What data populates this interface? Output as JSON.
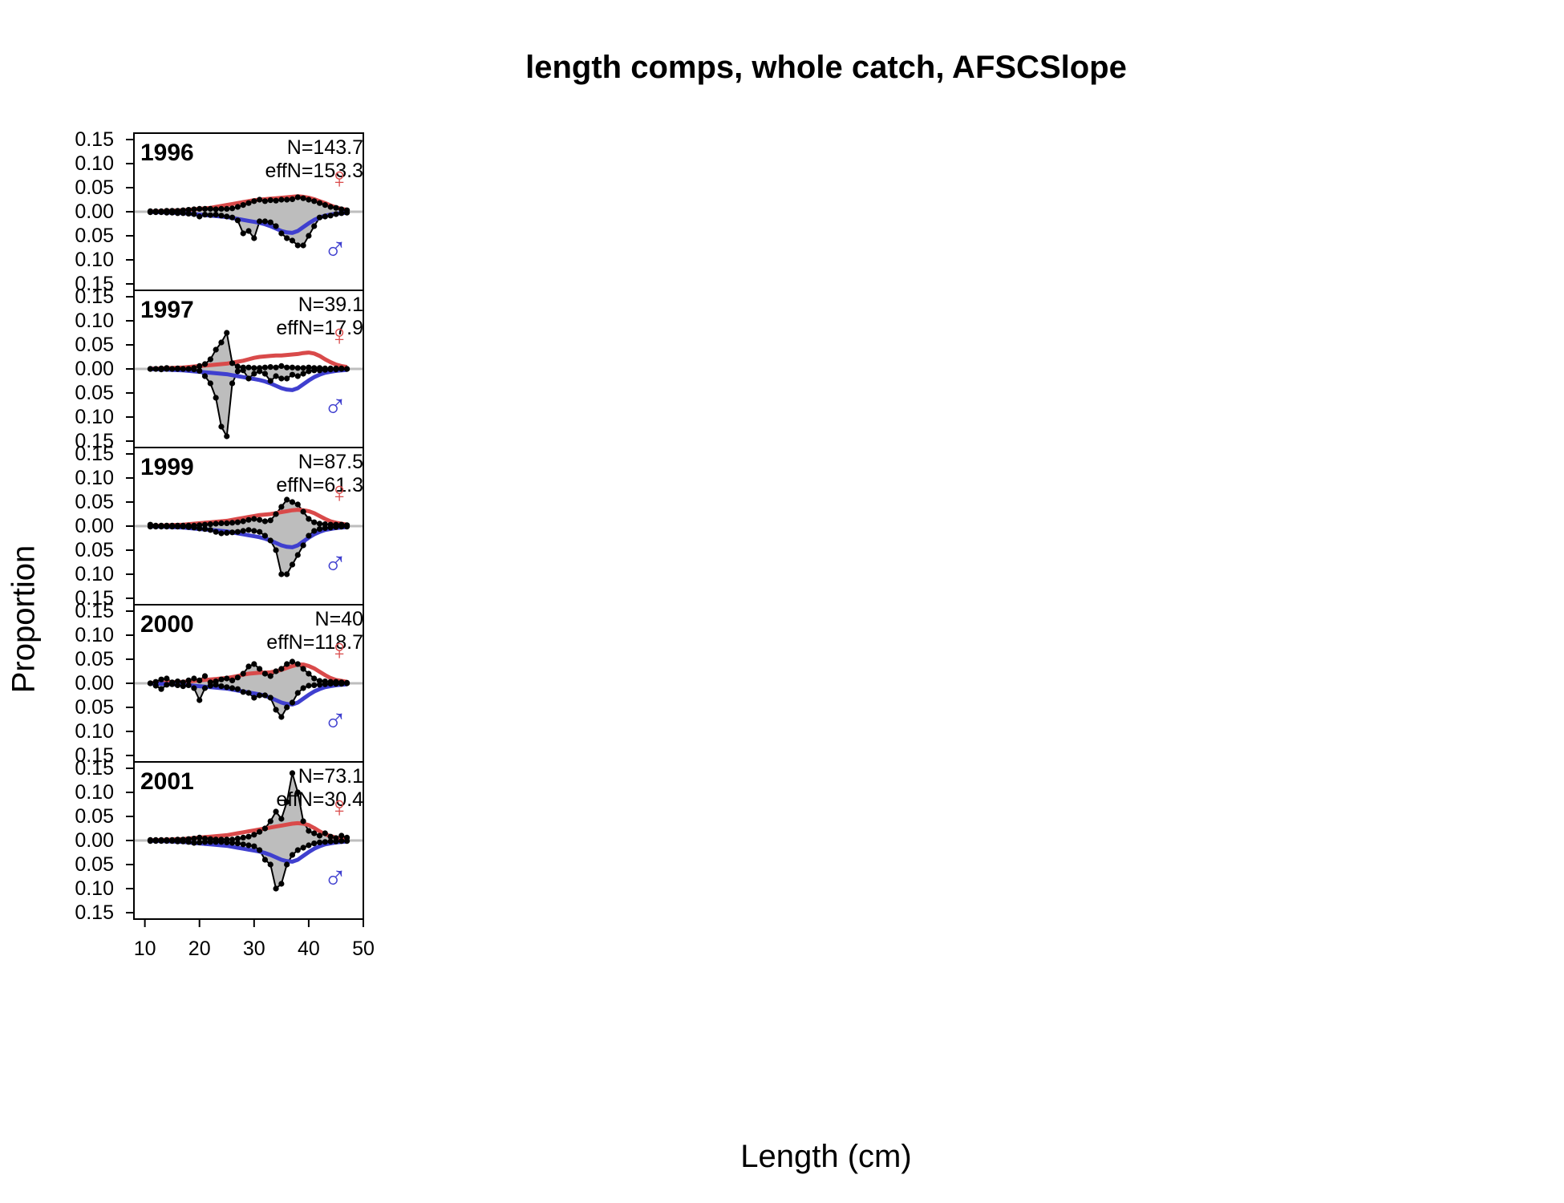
{
  "chart_data": {
    "type": "area",
    "title": "length comps, whole catch, AFSCSlope",
    "xlabel": "Length (cm)",
    "ylabel": "Proportion",
    "xlim": [
      8,
      50
    ],
    "ylim": [
      -0.15,
      0.15
    ],
    "x_ticks": [
      10,
      20,
      30,
      40,
      50
    ],
    "y_tick_labels": [
      "0.15",
      "0.10",
      "0.05",
      "0.00",
      "0.05",
      "0.10",
      "0.15"
    ],
    "sex_symbols": {
      "female": "♀",
      "male": "♂"
    },
    "colors": {
      "female": "#d94a4a",
      "male": "#3f3fcf",
      "observed": "#000000",
      "fill": "#bdbdbd",
      "zero_line": "#bebebe"
    },
    "panels": [
      {
        "year": "1996",
        "n_label": "N=143.7",
        "effn_label": "effN=153.3",
        "x": [
          11,
          12,
          13,
          14,
          15,
          16,
          17,
          18,
          19,
          20,
          21,
          22,
          23,
          24,
          25,
          26,
          27,
          28,
          29,
          30,
          31,
          32,
          33,
          34,
          35,
          36,
          37,
          38,
          39,
          40,
          41,
          42,
          43,
          44,
          45,
          46,
          47
        ],
        "female_obs": [
          0.001,
          0.001,
          0.001,
          0.002,
          0.002,
          0.002,
          0.003,
          0.004,
          0.005,
          0.006,
          0.006,
          0.006,
          0.005,
          0.006,
          0.006,
          0.007,
          0.01,
          0.014,
          0.018,
          0.022,
          0.025,
          0.022,
          0.024,
          0.023,
          0.025,
          0.025,
          0.026,
          0.03,
          0.028,
          0.025,
          0.022,
          0.018,
          0.014,
          0.01,
          0.008,
          0.005,
          0.003
        ],
        "male_obs": [
          0.001,
          0.001,
          0.001,
          0.002,
          0.002,
          0.003,
          0.003,
          0.004,
          0.005,
          0.01,
          0.006,
          0.007,
          0.006,
          0.008,
          0.01,
          0.012,
          0.018,
          0.045,
          0.04,
          0.055,
          0.02,
          0.02,
          0.022,
          0.03,
          0.045,
          0.055,
          0.06,
          0.07,
          0.07,
          0.05,
          0.03,
          0.012,
          0.01,
          0.008,
          0.005,
          0.003,
          0.002
        ],
        "female_fit": [
          0.0005,
          0.0008,
          0.001,
          0.0015,
          0.002,
          0.0025,
          0.003,
          0.004,
          0.005,
          0.006,
          0.007,
          0.008,
          0.01,
          0.012,
          0.014,
          0.016,
          0.018,
          0.02,
          0.022,
          0.024,
          0.025,
          0.026,
          0.027,
          0.028,
          0.029,
          0.03,
          0.031,
          0.032,
          0.031,
          0.029,
          0.026,
          0.022,
          0.018,
          0.013,
          0.009,
          0.006,
          0.004
        ],
        "male_fit": [
          0.0005,
          0.0008,
          0.001,
          0.0015,
          0.002,
          0.0025,
          0.003,
          0.004,
          0.005,
          0.006,
          0.007,
          0.008,
          0.009,
          0.01,
          0.011,
          0.013,
          0.015,
          0.017,
          0.019,
          0.021,
          0.023,
          0.026,
          0.03,
          0.035,
          0.04,
          0.043,
          0.044,
          0.04,
          0.032,
          0.024,
          0.017,
          0.012,
          0.008,
          0.006,
          0.004,
          0.003,
          0.002
        ]
      },
      {
        "year": "1997",
        "n_label": "N=39.1",
        "effn_label": "effN=17.9",
        "x": [
          11,
          12,
          13,
          14,
          15,
          16,
          17,
          18,
          19,
          20,
          21,
          22,
          23,
          24,
          25,
          26,
          27,
          28,
          29,
          30,
          31,
          32,
          33,
          34,
          35,
          36,
          37,
          38,
          39,
          40,
          41,
          42,
          43,
          44,
          45,
          46,
          47
        ],
        "female_obs": [
          0.0,
          0.0,
          0.001,
          0.002,
          0.0,
          0.001,
          0.0,
          0.0,
          0.002,
          0.006,
          0.01,
          0.02,
          0.04,
          0.055,
          0.075,
          0.012,
          0.005,
          0.003,
          0.003,
          0.002,
          0.002,
          0.003,
          0.004,
          0.003,
          0.006,
          0.003,
          0.003,
          0.002,
          0.002,
          0.003,
          0.002,
          0.002,
          0.001,
          0.001,
          0.001,
          0.001,
          0.0
        ],
        "male_obs": [
          0.0,
          0.0,
          0.001,
          0.0,
          0.0,
          0.0,
          0.0,
          0.0,
          0.001,
          0.004,
          0.015,
          0.03,
          0.06,
          0.12,
          0.14,
          0.03,
          0.005,
          0.003,
          0.02,
          0.01,
          0.005,
          0.01,
          0.025,
          0.015,
          0.02,
          0.02,
          0.012,
          0.015,
          0.01,
          0.005,
          0.003,
          0.003,
          0.002,
          0.001,
          0.001,
          0.0,
          0.0
        ],
        "female_fit": [
          0.0005,
          0.0008,
          0.001,
          0.0015,
          0.002,
          0.0025,
          0.003,
          0.004,
          0.005,
          0.006,
          0.007,
          0.008,
          0.009,
          0.01,
          0.011,
          0.013,
          0.015,
          0.017,
          0.02,
          0.023,
          0.025,
          0.026,
          0.027,
          0.028,
          0.028,
          0.029,
          0.03,
          0.031,
          0.033,
          0.034,
          0.032,
          0.027,
          0.02,
          0.014,
          0.009,
          0.006,
          0.004
        ],
        "male_fit": [
          0.0005,
          0.0008,
          0.001,
          0.0015,
          0.002,
          0.0025,
          0.003,
          0.004,
          0.005,
          0.006,
          0.007,
          0.008,
          0.009,
          0.01,
          0.011,
          0.013,
          0.015,
          0.017,
          0.019,
          0.021,
          0.023,
          0.026,
          0.03,
          0.035,
          0.04,
          0.043,
          0.044,
          0.04,
          0.032,
          0.024,
          0.017,
          0.012,
          0.008,
          0.006,
          0.004,
          0.003,
          0.002
        ]
      },
      {
        "year": "1999",
        "n_label": "N=87.5",
        "effn_label": "effN=61.3",
        "x": [
          11,
          12,
          13,
          14,
          15,
          16,
          17,
          18,
          19,
          20,
          21,
          22,
          23,
          24,
          25,
          26,
          27,
          28,
          29,
          30,
          31,
          32,
          33,
          34,
          35,
          36,
          37,
          38,
          39,
          40,
          41,
          42,
          43,
          44,
          45,
          46,
          47
        ],
        "female_obs": [
          0.003,
          0.001,
          0.001,
          0.001,
          0.001,
          0.001,
          0.001,
          0.001,
          0.001,
          0.002,
          0.003,
          0.004,
          0.005,
          0.006,
          0.006,
          0.007,
          0.008,
          0.01,
          0.013,
          0.015,
          0.013,
          0.01,
          0.012,
          0.025,
          0.04,
          0.055,
          0.05,
          0.045,
          0.03,
          0.015,
          0.008,
          0.005,
          0.004,
          0.003,
          0.003,
          0.003,
          0.002
        ],
        "male_obs": [
          0.001,
          0.001,
          0.001,
          0.001,
          0.001,
          0.001,
          0.001,
          0.002,
          0.003,
          0.005,
          0.006,
          0.008,
          0.012,
          0.015,
          0.014,
          0.013,
          0.012,
          0.01,
          0.008,
          0.01,
          0.012,
          0.02,
          0.03,
          0.05,
          0.1,
          0.1,
          0.08,
          0.06,
          0.04,
          0.02,
          0.01,
          0.006,
          0.004,
          0.003,
          0.002,
          0.001,
          0.001
        ],
        "female_fit": [
          0.0005,
          0.0008,
          0.001,
          0.0015,
          0.002,
          0.0025,
          0.003,
          0.004,
          0.005,
          0.006,
          0.007,
          0.008,
          0.009,
          0.01,
          0.011,
          0.013,
          0.015,
          0.017,
          0.019,
          0.021,
          0.023,
          0.024,
          0.025,
          0.027,
          0.029,
          0.031,
          0.033,
          0.034,
          0.033,
          0.031,
          0.027,
          0.021,
          0.015,
          0.01,
          0.007,
          0.005,
          0.003
        ],
        "male_fit": [
          0.0005,
          0.0008,
          0.001,
          0.0015,
          0.002,
          0.0025,
          0.003,
          0.004,
          0.005,
          0.006,
          0.007,
          0.008,
          0.009,
          0.01,
          0.011,
          0.013,
          0.015,
          0.017,
          0.019,
          0.021,
          0.023,
          0.026,
          0.03,
          0.035,
          0.04,
          0.043,
          0.044,
          0.04,
          0.032,
          0.024,
          0.017,
          0.012,
          0.008,
          0.006,
          0.004,
          0.003,
          0.002
        ]
      },
      {
        "year": "2000",
        "n_label": "N=40",
        "effn_label": "effN=118.7",
        "x": [
          11,
          12,
          13,
          14,
          15,
          16,
          17,
          18,
          19,
          20,
          21,
          22,
          23,
          24,
          25,
          26,
          27,
          28,
          29,
          30,
          31,
          32,
          33,
          34,
          35,
          36,
          37,
          38,
          39,
          40,
          41,
          42,
          43,
          44,
          45,
          46,
          47
        ],
        "female_obs": [
          0.0,
          0.003,
          0.008,
          0.01,
          0.002,
          0.004,
          0.002,
          0.006,
          0.01,
          0.006,
          0.015,
          0.002,
          0.004,
          0.008,
          0.01,
          0.006,
          0.012,
          0.02,
          0.035,
          0.04,
          0.03,
          0.02,
          0.015,
          0.025,
          0.03,
          0.04,
          0.045,
          0.04,
          0.03,
          0.02,
          0.01,
          0.005,
          0.004,
          0.003,
          0.003,
          0.002,
          0.001
        ],
        "male_obs": [
          0.0,
          0.005,
          0.012,
          0.003,
          0.002,
          0.004,
          0.006,
          0.004,
          0.01,
          0.035,
          0.01,
          0.005,
          0.003,
          0.006,
          0.008,
          0.01,
          0.012,
          0.018,
          0.02,
          0.03,
          0.025,
          0.025,
          0.03,
          0.055,
          0.07,
          0.05,
          0.04,
          0.02,
          0.01,
          0.005,
          0.004,
          0.003,
          0.002,
          0.001,
          0.001,
          0.001,
          0.0
        ],
        "female_fit": [
          0.0005,
          0.0008,
          0.001,
          0.0015,
          0.002,
          0.0025,
          0.003,
          0.004,
          0.005,
          0.006,
          0.007,
          0.008,
          0.009,
          0.01,
          0.011,
          0.013,
          0.015,
          0.018,
          0.02,
          0.021,
          0.022,
          0.022,
          0.023,
          0.025,
          0.028,
          0.032,
          0.036,
          0.039,
          0.039,
          0.036,
          0.031,
          0.024,
          0.017,
          0.011,
          0.007,
          0.005,
          0.003
        ],
        "male_fit": [
          0.0005,
          0.0008,
          0.001,
          0.0015,
          0.002,
          0.0025,
          0.003,
          0.004,
          0.005,
          0.006,
          0.007,
          0.008,
          0.009,
          0.01,
          0.011,
          0.013,
          0.015,
          0.017,
          0.019,
          0.021,
          0.023,
          0.026,
          0.03,
          0.035,
          0.04,
          0.043,
          0.044,
          0.04,
          0.032,
          0.024,
          0.017,
          0.012,
          0.008,
          0.006,
          0.004,
          0.003,
          0.002
        ]
      },
      {
        "year": "2001",
        "n_label": "N=73.1",
        "effn_label": "effN=30.4",
        "x": [
          11,
          12,
          13,
          14,
          15,
          16,
          17,
          18,
          19,
          20,
          21,
          22,
          23,
          24,
          25,
          26,
          27,
          28,
          29,
          30,
          31,
          32,
          33,
          34,
          35,
          36,
          37,
          38,
          39,
          40,
          41,
          42,
          43,
          44,
          45,
          46,
          47
        ],
        "female_obs": [
          0.001,
          0.001,
          0.001,
          0.001,
          0.001,
          0.002,
          0.002,
          0.003,
          0.004,
          0.006,
          0.004,
          0.003,
          0.002,
          0.002,
          0.002,
          0.002,
          0.004,
          0.006,
          0.008,
          0.012,
          0.018,
          0.025,
          0.04,
          0.06,
          0.045,
          0.08,
          0.14,
          0.1,
          0.04,
          0.02,
          0.015,
          0.01,
          0.015,
          0.008,
          0.005,
          0.01,
          0.006
        ],
        "male_obs": [
          0.001,
          0.001,
          0.001,
          0.001,
          0.001,
          0.002,
          0.002,
          0.003,
          0.005,
          0.004,
          0.003,
          0.003,
          0.003,
          0.003,
          0.004,
          0.005,
          0.006,
          0.008,
          0.01,
          0.012,
          0.02,
          0.04,
          0.05,
          0.1,
          0.09,
          0.05,
          0.03,
          0.02,
          0.015,
          0.01,
          0.006,
          0.004,
          0.003,
          0.002,
          0.002,
          0.001,
          0.001
        ],
        "female_fit": [
          0.0005,
          0.0008,
          0.001,
          0.0015,
          0.002,
          0.0025,
          0.003,
          0.004,
          0.005,
          0.006,
          0.007,
          0.008,
          0.009,
          0.01,
          0.011,
          0.013,
          0.015,
          0.017,
          0.019,
          0.021,
          0.023,
          0.025,
          0.027,
          0.029,
          0.031,
          0.033,
          0.035,
          0.036,
          0.035,
          0.032,
          0.026,
          0.019,
          0.013,
          0.009,
          0.006,
          0.004,
          0.003
        ],
        "male_fit": [
          0.0005,
          0.0008,
          0.001,
          0.0015,
          0.002,
          0.0025,
          0.003,
          0.004,
          0.005,
          0.006,
          0.007,
          0.008,
          0.009,
          0.01,
          0.011,
          0.013,
          0.015,
          0.017,
          0.019,
          0.021,
          0.023,
          0.026,
          0.03,
          0.035,
          0.04,
          0.043,
          0.044,
          0.04,
          0.032,
          0.024,
          0.017,
          0.012,
          0.008,
          0.006,
          0.004,
          0.003,
          0.002
        ]
      }
    ]
  }
}
